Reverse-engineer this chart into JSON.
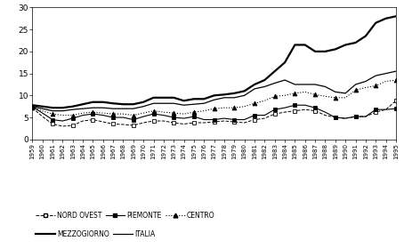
{
  "years": [
    1959,
    1960,
    1961,
    1962,
    1963,
    1964,
    1965,
    1966,
    1967,
    1968,
    1969,
    1970,
    1971,
    1972,
    1973,
    1974,
    1975,
    1976,
    1977,
    1978,
    1979,
    1980,
    1981,
    1982,
    1983,
    1984,
    1985,
    1986,
    1987,
    1988,
    1989,
    1990,
    1991,
    1992,
    1993,
    1994,
    1995
  ],
  "nord_ovest": [
    7.2,
    5.2,
    3.5,
    3.0,
    3.2,
    4.2,
    4.5,
    4.0,
    3.5,
    3.4,
    3.2,
    3.8,
    4.2,
    4.2,
    3.8,
    3.5,
    3.8,
    3.8,
    4.0,
    4.2,
    4.0,
    3.8,
    4.5,
    4.8,
    5.8,
    6.2,
    6.5,
    6.8,
    6.5,
    5.5,
    5.0,
    4.8,
    5.2,
    5.2,
    6.2,
    6.8,
    8.8
  ],
  "piemonte": [
    7.5,
    6.0,
    4.5,
    4.2,
    4.8,
    5.5,
    5.8,
    5.5,
    5.0,
    5.0,
    4.5,
    5.2,
    5.8,
    5.5,
    5.0,
    4.8,
    5.2,
    4.5,
    4.5,
    4.8,
    4.5,
    4.5,
    5.5,
    5.5,
    6.8,
    7.2,
    7.8,
    7.8,
    7.2,
    6.2,
    5.0,
    4.8,
    5.2,
    5.2,
    6.8,
    6.8,
    7.0
  ],
  "centro": [
    7.2,
    6.5,
    5.8,
    5.5,
    5.5,
    6.0,
    6.2,
    6.0,
    5.8,
    5.8,
    5.5,
    6.0,
    6.5,
    6.2,
    6.0,
    5.8,
    6.2,
    6.5,
    7.0,
    7.2,
    7.2,
    7.5,
    8.2,
    8.8,
    9.8,
    10.0,
    10.5,
    10.8,
    10.2,
    9.8,
    9.5,
    9.5,
    11.2,
    11.8,
    12.2,
    13.2,
    13.5
  ],
  "mezzogiorno": [
    7.8,
    7.5,
    7.2,
    7.2,
    7.5,
    8.0,
    8.5,
    8.5,
    8.2,
    8.0,
    8.0,
    8.5,
    9.5,
    9.5,
    9.5,
    8.8,
    9.2,
    9.2,
    10.0,
    10.2,
    10.5,
    11.0,
    12.5,
    13.5,
    15.5,
    17.5,
    21.5,
    21.5,
    20.0,
    20.0,
    20.5,
    21.5,
    22.0,
    23.5,
    26.5,
    27.5,
    28.0
  ],
  "italia": [
    7.5,
    7.0,
    6.5,
    6.5,
    6.8,
    7.0,
    7.2,
    7.2,
    7.0,
    7.0,
    7.0,
    7.5,
    8.2,
    8.2,
    8.2,
    7.8,
    8.0,
    8.2,
    9.0,
    9.5,
    9.5,
    10.0,
    11.5,
    12.0,
    12.8,
    13.5,
    12.5,
    12.5,
    12.5,
    12.0,
    10.8,
    10.5,
    12.5,
    13.2,
    14.5,
    15.0,
    15.5
  ],
  "ylim": [
    0,
    30
  ],
  "yticks": [
    0,
    5,
    10,
    15,
    20,
    25,
    30
  ],
  "bg_color": "#ffffff"
}
